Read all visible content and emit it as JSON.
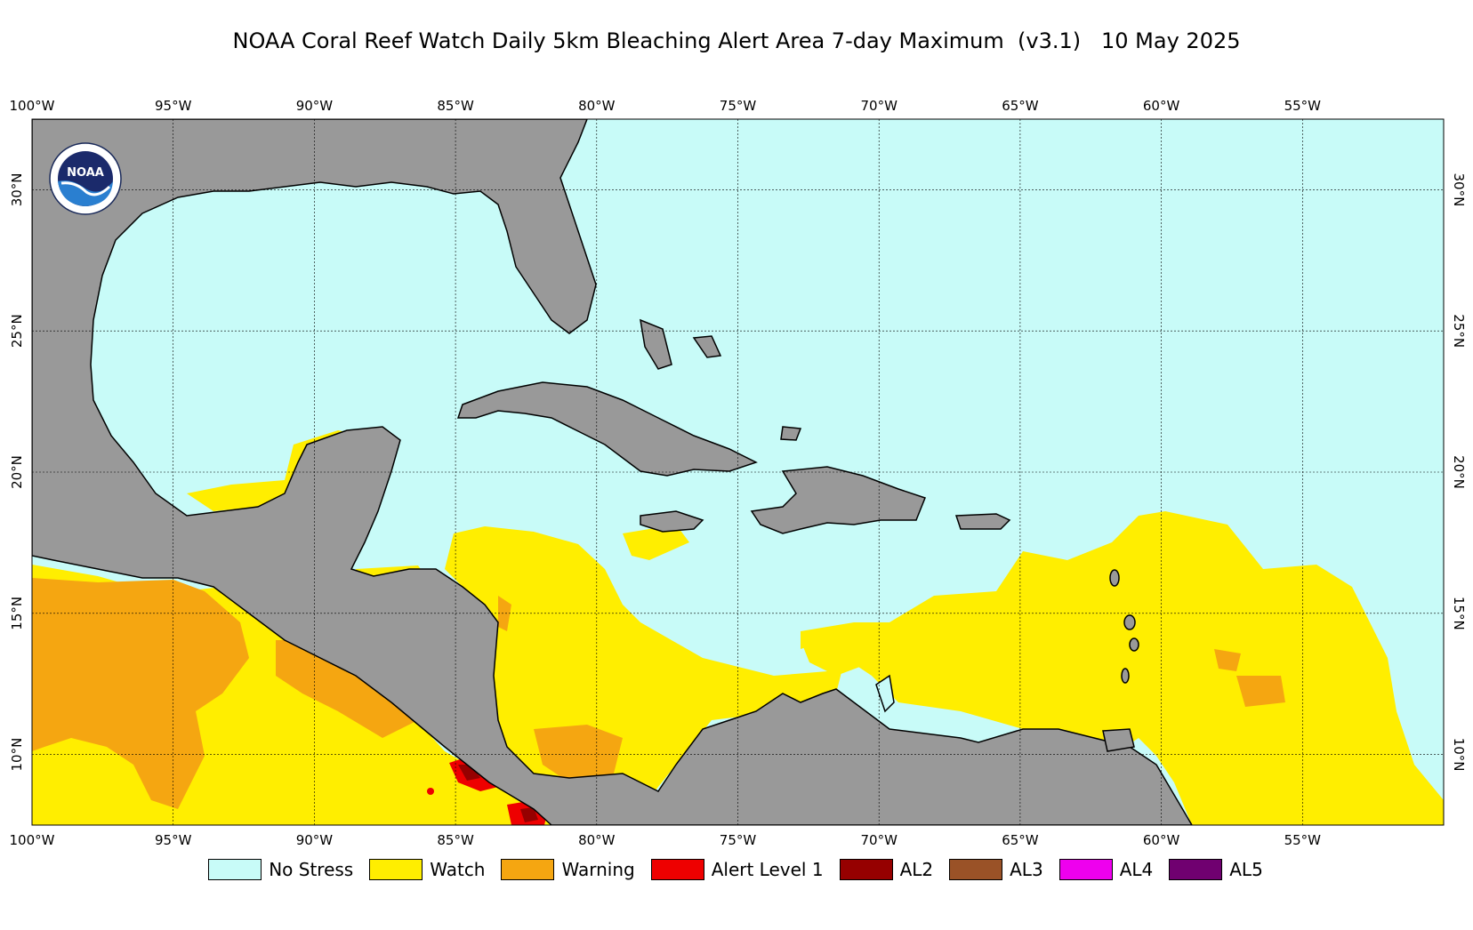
{
  "title": "NOAA Coral Reef Watch Daily 5km Bleaching Alert Area 7-day Maximum  (v3.1)   10 May 2025",
  "logo": {
    "text": "NOAA",
    "icon": "noaa-logo-icon"
  },
  "axes": {
    "lon_labels": [
      "100°W",
      "95°W",
      "90°W",
      "85°W",
      "80°W",
      "75°W",
      "70°W",
      "65°W",
      "60°W",
      "55°W"
    ],
    "lon_values": [
      -100,
      -95,
      -90,
      -85,
      -80,
      -75,
      -70,
      -65,
      -60,
      -55
    ],
    "lat_labels": [
      "10°N",
      "15°N",
      "20°N",
      "25°N",
      "30°N"
    ],
    "lat_values": [
      10,
      15,
      20,
      25,
      30
    ],
    "lon_range": [
      -100,
      -50
    ],
    "lat_range": [
      7.5,
      32.5
    ]
  },
  "colors": {
    "no_stress": "#c8fbf8",
    "watch": "#ffee00",
    "warning": "#f5a611",
    "alert1": "#ee0000",
    "al2": "#960000",
    "al3": "#9a5227",
    "al4": "#ee00ee",
    "al5": "#700070",
    "land": "#999999"
  },
  "legend": [
    {
      "label": "No Stress",
      "color": "#c8fbf8"
    },
    {
      "label": "Watch",
      "color": "#ffee00"
    },
    {
      "label": "Warning",
      "color": "#f5a611"
    },
    {
      "label": "Alert Level 1",
      "color": "#ee0000"
    },
    {
      "label": "AL2",
      "color": "#960000"
    },
    {
      "label": "AL3",
      "color": "#9a5227"
    },
    {
      "label": "AL4",
      "color": "#ee00ee"
    },
    {
      "label": "AL5",
      "color": "#700070"
    }
  ]
}
